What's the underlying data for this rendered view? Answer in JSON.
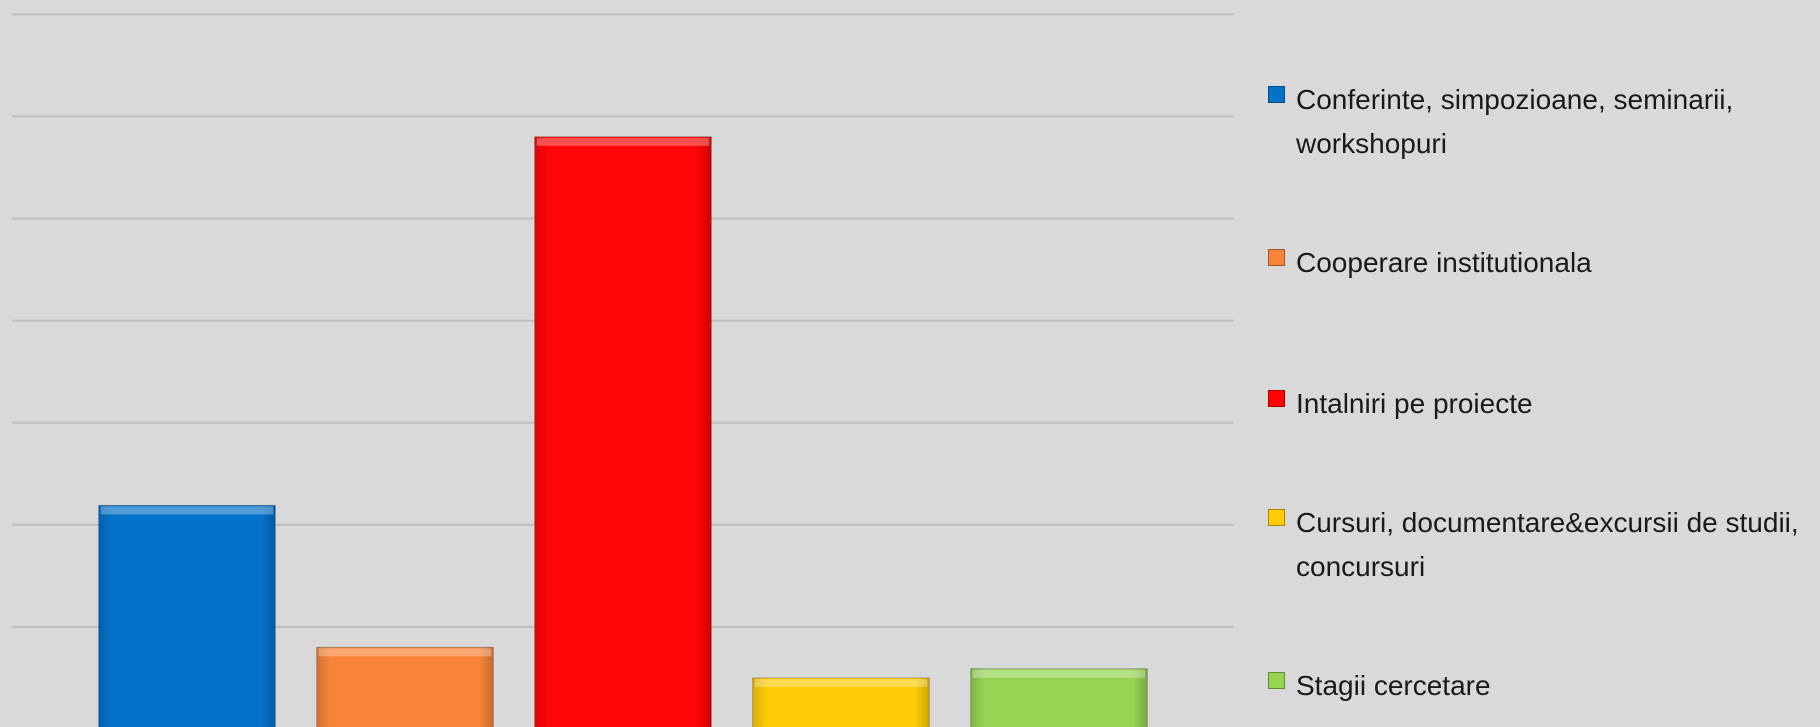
{
  "chart_data": {
    "type": "bar",
    "series": [
      {
        "name": "Conferinte, simpozioane, seminarii, workshopuri",
        "color": "#0472c8",
        "values": [
          2.19
        ]
      },
      {
        "name": "Cooperare institutionala",
        "color": "#f8843a",
        "values": [
          0.8
        ]
      },
      {
        "name": "Intalniri pe proiecte",
        "color": "#ff0505",
        "values": [
          5.8
        ]
      },
      {
        "name": "Cursuri, documentare&excursii de studii, concursuri",
        "color": "#ffcc05",
        "values": [
          0.5
        ]
      },
      {
        "name": "Stagii cercetare",
        "color": "#96d452",
        "values": [
          0.59
        ]
      }
    ],
    "ylim": [
      0,
      7.14
    ],
    "yticks": [
      1,
      2,
      3,
      4,
      5,
      6,
      7
    ],
    "grid": true,
    "legend": "right"
  }
}
